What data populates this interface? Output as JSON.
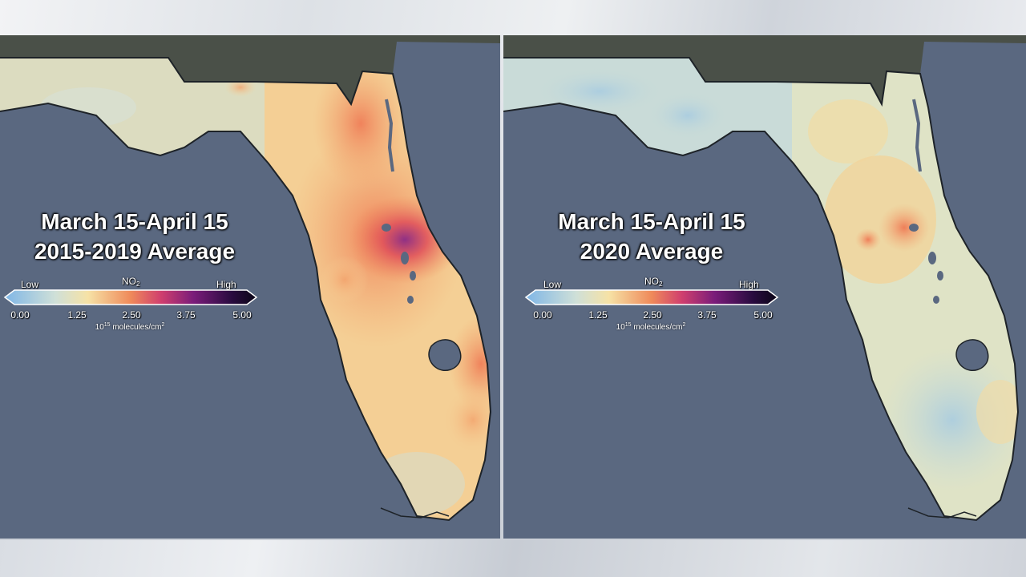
{
  "colors": {
    "ocean": "#5a6880",
    "land_dark": "#4a5048",
    "low": "#7fb6e6",
    "mid": "#f6e2a6",
    "orange": "#ef8a5a",
    "purple": "#7a1c7a",
    "high": "#0a0616"
  },
  "left_panel": {
    "title_line1": "March 15-April 15",
    "title_line2": "2015-2019 Average",
    "concentration_level": "high"
  },
  "right_panel": {
    "title_line1": "March 15-April 15",
    "title_line2": "2020 Average",
    "concentration_level": "low"
  },
  "legend": {
    "low_label": "Low",
    "high_label": "High",
    "pollutant": "NO",
    "pollutant_subscript": "2",
    "ticks": [
      "0.00",
      "1.25",
      "2.50",
      "3.75",
      "5.00"
    ],
    "units_prefix": "10",
    "units_exponent": "15",
    "units_suffix": " molecules/cm",
    "units_suffix_exponent": "2"
  }
}
